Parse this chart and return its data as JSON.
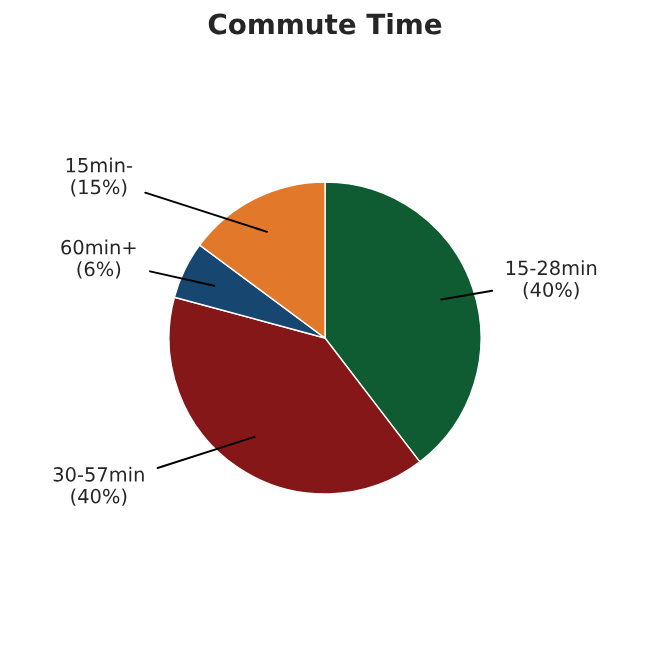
{
  "chart_data": {
    "type": "pie",
    "title": "Commute Time",
    "categories": [
      "15-28min",
      "30-57min",
      "60min+",
      "15min-"
    ],
    "values": [
      40,
      40,
      6,
      15
    ],
    "value_labels": [
      "(40%)",
      "(40%)",
      "(6%)",
      "(15%)"
    ],
    "colors": [
      "#0f5c32",
      "#861719",
      "#174670",
      "#e1782a"
    ],
    "legend": false
  }
}
